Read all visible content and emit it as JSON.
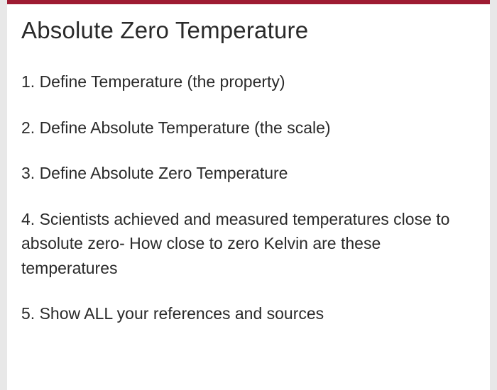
{
  "document": {
    "title": "Absolute Zero Temperature",
    "accent_color": "#9e1b32",
    "background_color": "#ffffff",
    "page_background": "#e8e8e8",
    "text_color": "#2a2a2a",
    "title_fontsize": 33,
    "body_fontsize": 23,
    "items": [
      "1. Define Temperature (the property)",
      "2. Define Absolute Temperature (the scale)",
      "3. Define Absolute Zero Temperature",
      "4.  Scientists achieved and measured temperatures close to absolute zero- How close to zero Kelvin are these temperatures",
      "5. Show ALL your references and sources"
    ]
  }
}
